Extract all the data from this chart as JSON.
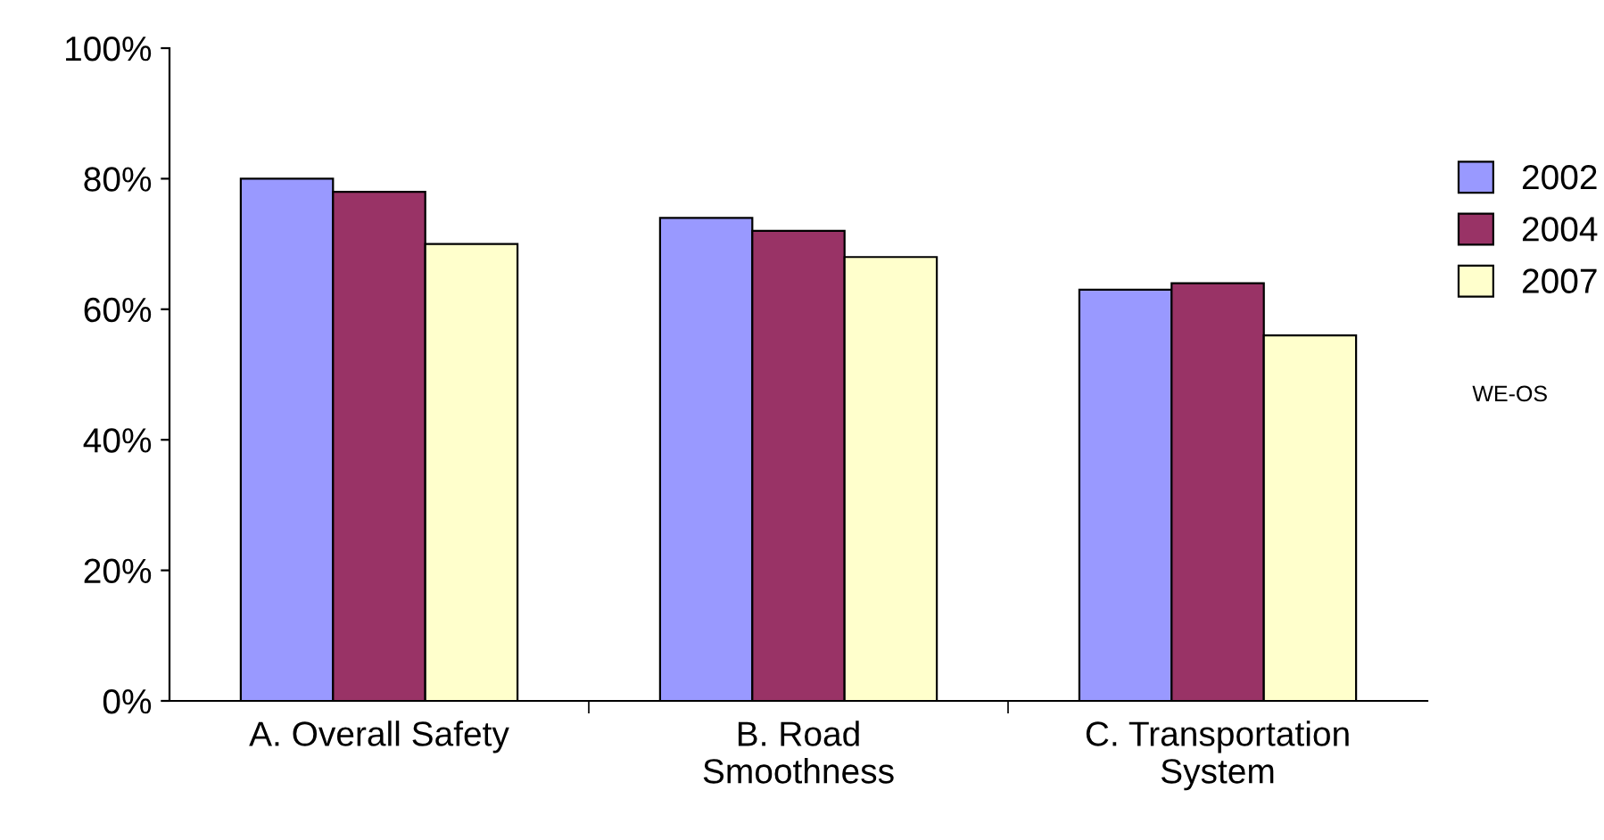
{
  "chart_data": {
    "type": "bar",
    "categories": [
      "A. Overall Safety",
      "B. Road\nSmoothness",
      "C. Transportation\nSystem"
    ],
    "series": [
      {
        "name": "2002",
        "color": "#9999ff",
        "values": [
          80,
          74,
          63
        ]
      },
      {
        "name": "2004",
        "color": "#993366",
        "values": [
          78,
          72,
          64
        ]
      },
      {
        "name": "2007",
        "color": "#ffffcc",
        "values": [
          70,
          68,
          56
        ]
      }
    ],
    "ylim": [
      0,
      100
    ],
    "yticks": [
      {
        "value": 0,
        "label": "0%"
      },
      {
        "value": 20,
        "label": "20%"
      },
      {
        "value": 40,
        "label": "40%"
      },
      {
        "value": 60,
        "label": "60%"
      },
      {
        "value": 80,
        "label": "80%"
      },
      {
        "value": 100,
        "label": "100%"
      }
    ],
    "grid": false,
    "legend": "right",
    "annotations": [
      "WE-OS"
    ]
  }
}
